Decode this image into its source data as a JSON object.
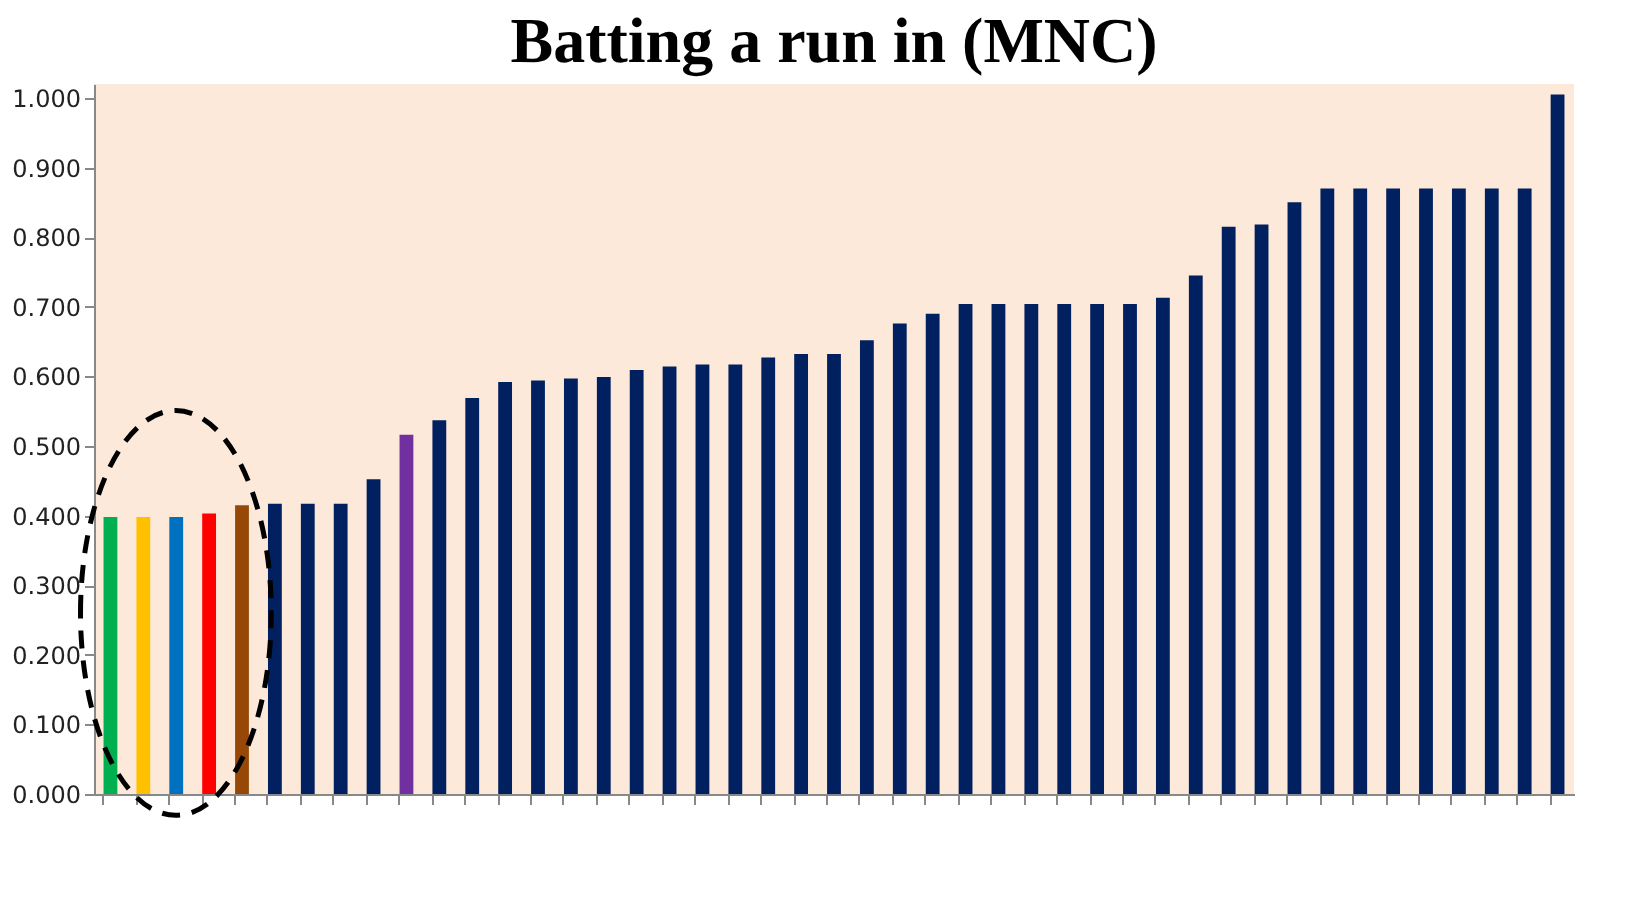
{
  "chart_data": {
    "type": "bar",
    "title": "Batting a run in (MNC)",
    "categories": [
      null,
      null,
      null,
      null,
      null,
      null,
      null,
      null,
      null,
      null,
      null,
      null,
      null,
      null,
      null,
      null,
      null,
      null,
      null,
      null,
      null,
      null,
      null,
      null,
      null,
      null,
      null,
      null,
      null,
      null,
      null,
      null,
      null,
      null,
      null,
      null,
      null,
      null,
      null,
      null,
      null,
      null,
      null,
      null,
      null
    ],
    "values": [
      0.398,
      0.398,
      0.398,
      0.403,
      0.415,
      0.417,
      0.417,
      0.417,
      0.452,
      0.516,
      0.537,
      0.569,
      0.592,
      0.594,
      0.597,
      0.599,
      0.609,
      0.614,
      0.617,
      0.617,
      0.627,
      0.632,
      0.632,
      0.652,
      0.676,
      0.69,
      0.704,
      0.704,
      0.704,
      0.704,
      0.704,
      0.704,
      0.713,
      0.745,
      0.815,
      0.818,
      0.85,
      0.87,
      0.87,
      0.87,
      0.87,
      0.87,
      0.87,
      0.87,
      1.005
    ],
    "colors": [
      "#00b050",
      "#ffc000",
      "#0070c0",
      "#ff0000",
      "#974806",
      "#002060",
      "#002060",
      "#002060",
      "#002060",
      "#7030a0",
      "#002060",
      "#002060",
      "#002060",
      "#002060",
      "#002060",
      "#002060",
      "#002060",
      "#002060",
      "#002060",
      "#002060",
      "#002060",
      "#002060",
      "#002060",
      "#002060",
      "#002060",
      "#002060",
      "#002060",
      "#002060",
      "#002060",
      "#002060",
      "#002060",
      "#002060",
      "#002060",
      "#002060",
      "#002060",
      "#002060",
      "#002060",
      "#002060",
      "#002060",
      "#002060",
      "#002060",
      "#002060",
      "#002060",
      "#002060",
      "#002060"
    ],
    "ylim": [
      0,
      1.02
    ],
    "yticks": [
      {
        "value": 0,
        "label": "0.000"
      },
      {
        "value": 0.1,
        "label": "0.100"
      },
      {
        "value": 0.2,
        "label": "0.200"
      },
      {
        "value": 0.3,
        "label": "0.300"
      },
      {
        "value": 0.4,
        "label": "0.400"
      },
      {
        "value": 0.5,
        "label": "0.500"
      },
      {
        "value": 0.6,
        "label": "0.600"
      },
      {
        "value": 0.7,
        "label": "0.700"
      },
      {
        "value": 0.8,
        "label": "0.800"
      },
      {
        "value": 0.9,
        "label": "0.900"
      },
      {
        "value": 1.0,
        "label": "1.000"
      }
    ],
    "grid": false
  }
}
